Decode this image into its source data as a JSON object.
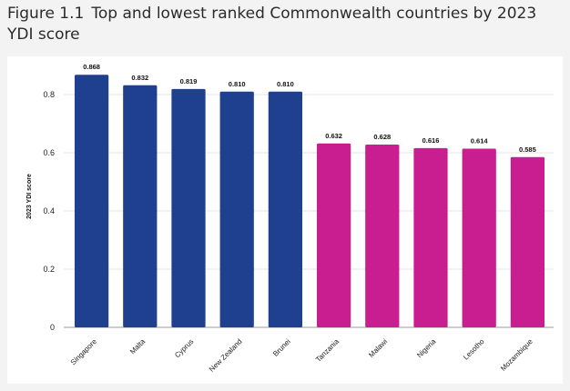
{
  "figure": {
    "number": "Figure 1.1",
    "title": "Top and lowest ranked Commonwealth countries by 2023 YDI score"
  },
  "chart_data": {
    "type": "bar",
    "title": "Top and lowest ranked Commonwealth countries by 2023 YDI score",
    "xlabel": "",
    "ylabel": "2023 YDI score",
    "ylim": [
      0,
      0.9
    ],
    "yticks": [
      0,
      0.2,
      0.4,
      0.6,
      0.8
    ],
    "ytick_labels": [
      "0",
      "0.2",
      "0.4",
      "0.6",
      "0.8"
    ],
    "grid": true,
    "categories": [
      "Singapore",
      "Malta",
      "Cyprus",
      "New Zealand",
      "Brunei",
      "Tanzania",
      "Malawi",
      "Nigeria",
      "Lesotho",
      "Mozambique"
    ],
    "values": [
      0.868,
      0.832,
      0.819,
      0.81,
      0.81,
      0.632,
      0.628,
      0.616,
      0.614,
      0.585
    ],
    "value_labels": [
      "0.868",
      "0.832",
      "0.819",
      "0.810",
      "0.810",
      "0.632",
      "0.628",
      "0.616",
      "0.614",
      "0.585"
    ],
    "groups": [
      "top",
      "top",
      "top",
      "top",
      "top",
      "lowest",
      "lowest",
      "lowest",
      "lowest",
      "lowest"
    ],
    "colors": {
      "top": "#1f3f8f",
      "lowest": "#c91e8f",
      "grid": "#e6e6e6",
      "axis": "#999999"
    }
  }
}
